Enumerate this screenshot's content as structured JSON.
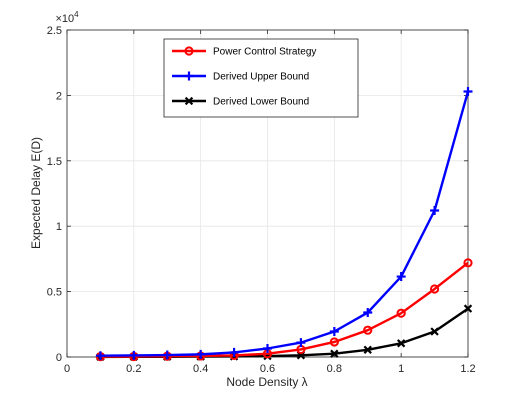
{
  "chart_data": {
    "type": "line",
    "xlabel": "Node Density λ",
    "ylabel": "Expected Delay E(D)",
    "y_multiplier_label": "×10",
    "y_multiplier_exponent": "4",
    "xlim": [
      0,
      1.2
    ],
    "ylim": [
      0,
      25000
    ],
    "x_ticks": [
      0,
      0.2,
      0.4,
      0.6,
      0.8,
      1,
      1.2
    ],
    "x_tick_labels": [
      "0",
      "0.2",
      "0.4",
      "0.6",
      "0.8",
      "1",
      "1.2"
    ],
    "y_ticks": [
      0,
      5000,
      10000,
      15000,
      20000,
      25000
    ],
    "y_tick_labels": [
      "0",
      "0.5",
      "1",
      "1.5",
      "2",
      "2.5"
    ],
    "grid": true,
    "legend_position": "top-right",
    "x": [
      0.1,
      0.2,
      0.3,
      0.4,
      0.5,
      0.6,
      0.7,
      0.8,
      0.9,
      1.0,
      1.1,
      1.2
    ],
    "series": [
      {
        "name": "Power Control Strategy",
        "color": "#ff0000",
        "marker": "circle",
        "values": [
          30,
          40,
          60,
          80,
          120,
          250,
          580,
          1150,
          2050,
          3350,
          5200,
          7200
        ]
      },
      {
        "name": "Derived Upper Bound",
        "color": "#0000ff",
        "marker": "plus",
        "values": [
          100,
          120,
          150,
          200,
          350,
          650,
          1100,
          1950,
          3400,
          6150,
          11200,
          20300
        ]
      },
      {
        "name": "Derived Lower Bound",
        "color": "#000000",
        "marker": "x",
        "values": [
          10,
          15,
          20,
          30,
          40,
          70,
          130,
          250,
          550,
          1050,
          1950,
          3700
        ]
      }
    ]
  }
}
